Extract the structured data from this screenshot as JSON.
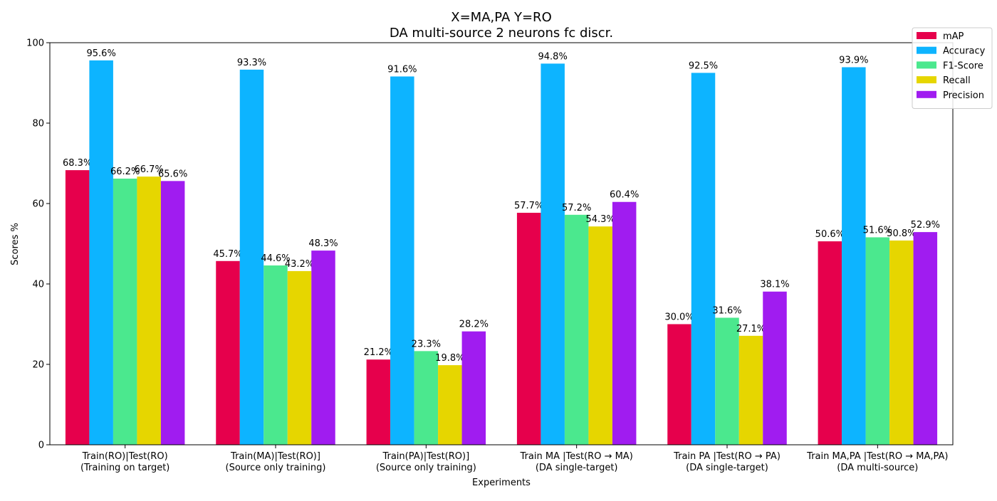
{
  "chart_data": {
    "type": "bar",
    "title": "X=MA,PA Y=RO",
    "subtitle": "DA multi-source 2 neurons fc discr.",
    "xlabel": "Experiments",
    "ylabel": "Scores %",
    "ylim": [
      0,
      100
    ],
    "yticks": [
      0,
      20,
      40,
      60,
      80,
      100
    ],
    "grid": false,
    "legend_position": "top-right",
    "value_label_suffix": "%",
    "categories": [
      [
        "Train(RO)|Test(RO)",
        "(Training on target)"
      ],
      [
        "Train(MA)|Test(RO)]",
        "(Source only training)"
      ],
      [
        "Train(PA)|Test(RO)]",
        "(Source only training)"
      ],
      [
        "Train MA |Test(RO → MA)",
        "(DA single-target)"
      ],
      [
        "Train PA |Test(RO → PA)",
        "(DA single-target)"
      ],
      [
        "Train MA,PA |Test(RO → MA,PA)",
        "(DA multi-source)"
      ]
    ],
    "series": [
      {
        "name": "mAP",
        "color": "#e6004c",
        "values": [
          68.3,
          45.7,
          21.2,
          57.7,
          30.0,
          50.6
        ]
      },
      {
        "name": "Accuracy",
        "color": "#0db4ff",
        "values": [
          95.6,
          93.3,
          91.6,
          94.8,
          92.5,
          93.9
        ]
      },
      {
        "name": "F1-Score",
        "color": "#4be88e",
        "values": [
          66.2,
          44.6,
          23.3,
          57.2,
          31.6,
          51.6
        ]
      },
      {
        "name": "Recall",
        "color": "#e6d600",
        "values": [
          66.7,
          43.2,
          19.8,
          54.3,
          27.1,
          50.8
        ]
      },
      {
        "name": "Precision",
        "color": "#a01cf0",
        "values": [
          65.6,
          48.3,
          28.2,
          60.4,
          38.1,
          52.9
        ]
      }
    ]
  }
}
